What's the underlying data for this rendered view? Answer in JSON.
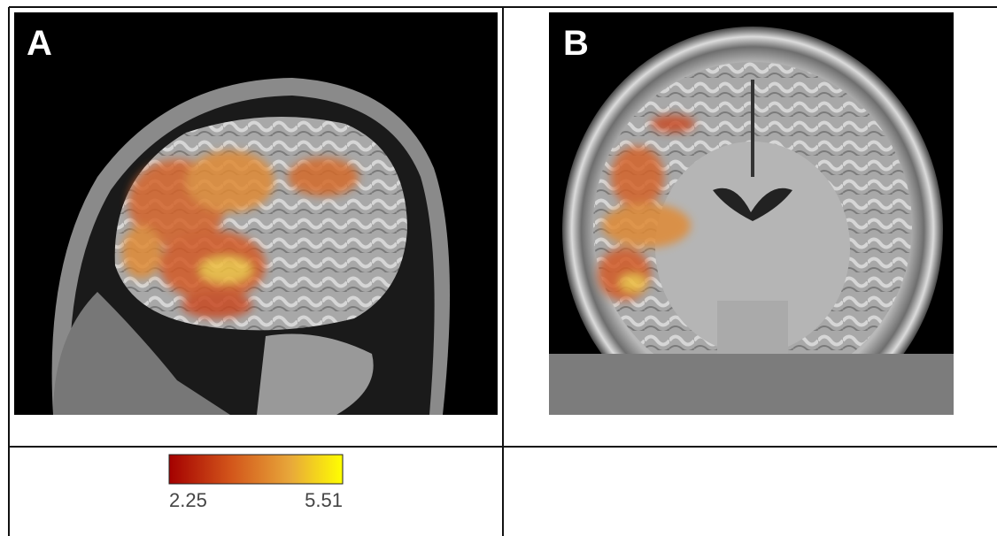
{
  "panels": [
    {
      "label": "A"
    },
    {
      "label": "B"
    }
  ],
  "colorbar": {
    "min": 2.25,
    "max": 5.51
  }
}
